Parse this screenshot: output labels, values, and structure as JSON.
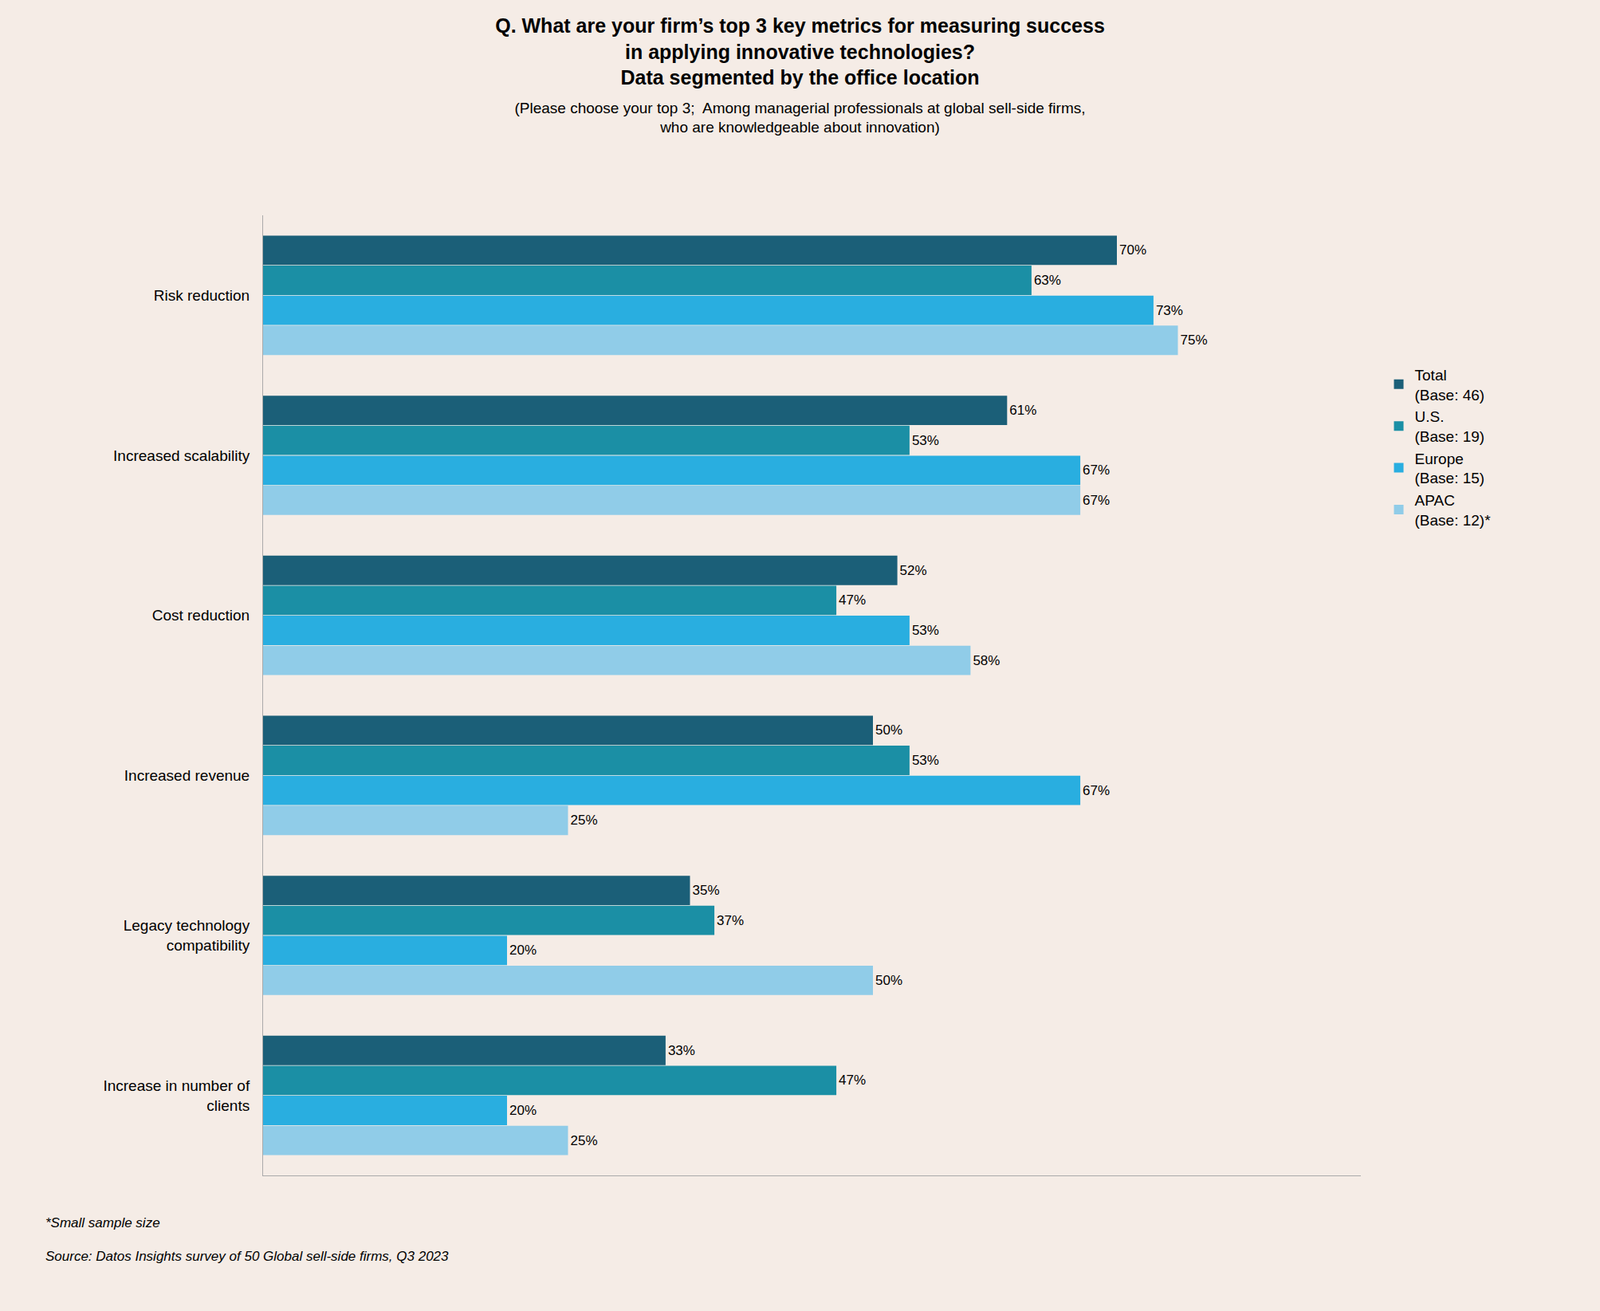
{
  "chart_data": {
    "type": "bar",
    "orientation": "horizontal",
    "title": "Q. What are your firm’s top 3 key metrics for measuring success\nin applying innovative technologies?\nData segmented by the office location",
    "subtitle": "(Please choose your top 3;  Among managerial professionals at global sell-side firms,\nwho are knowledgeable about innovation)",
    "categories": [
      "Risk reduction",
      "Increased scalability",
      "Cost reduction",
      "Increased revenue",
      "Legacy technology\ncompatibility",
      "Increase in number of\nclients"
    ],
    "series": [
      {
        "name": "Total\n(Base: 46)",
        "color": "#1b5f78",
        "values": [
          70,
          61,
          52,
          50,
          35,
          33
        ],
        "value_labels": [
          "70%",
          "61%",
          "52%",
          "50%",
          "35%",
          "33%"
        ]
      },
      {
        "name": "U.S.\n(Base: 19)",
        "color": "#1b8fa5",
        "values": [
          63,
          53,
          47,
          53,
          37,
          47
        ],
        "value_labels": [
          "63%",
          "53%",
          "47%",
          "53%",
          "37%",
          "47%"
        ]
      },
      {
        "name": "Europe\n(Base: 15)",
        "color": "#29aee0",
        "values": [
          73,
          67,
          53,
          67,
          20,
          20
        ],
        "value_labels": [
          "73%",
          "67%",
          "53%",
          "67%",
          "20%",
          "20%"
        ]
      },
      {
        "name": "APAC\n(Base: 12)*",
        "color": "#90cce8",
        "values": [
          75,
          67,
          58,
          25,
          50,
          25
        ],
        "value_labels": [
          "75%",
          "67%",
          "58%",
          "25%",
          "50%",
          "25%"
        ]
      }
    ],
    "xlim": [
      0,
      90
    ],
    "tick_labels": "y",
    "grid": false,
    "legend": "right",
    "data_labels": true,
    "annotations": [
      "*Small sample size",
      "Source: Datos Insights survey of 50 Global sell-side firms, Q3 2023"
    ]
  }
}
